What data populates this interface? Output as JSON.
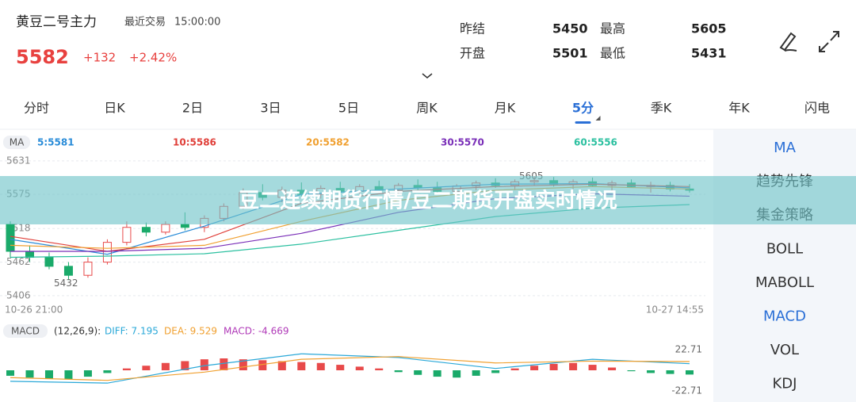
{
  "header": {
    "name": "黄豆二号主力",
    "last_trade_label": "最近交易",
    "time": "15:00:00",
    "price": 5582,
    "change": "+132",
    "change_pct": "+2.42%",
    "stats": [
      {
        "label": "昨结",
        "value": 5450
      },
      {
        "label": "最高",
        "value": 5605
      },
      {
        "label": "开盘",
        "value": 5501
      },
      {
        "label": "最低",
        "value": 5431
      }
    ]
  },
  "tabs": [
    "分时",
    "日K",
    "2日",
    "3日",
    "5日",
    "周K",
    "月K",
    "5分",
    "季K",
    "年K",
    "闪电"
  ],
  "active_tab": "5分",
  "side_menu": [
    "MA",
    "趋势先锋",
    "集金策略",
    "BOLL",
    "MABOLL",
    "MACD",
    "VOL",
    "KDJ"
  ],
  "side_active": [
    "MA",
    "MACD"
  ],
  "banner": "豆二连续期货行情/豆二期货开盘实时情况",
  "chart_data": [
    {
      "type": "candlestick",
      "legend_title": "MA",
      "up_color": "#e84a4a",
      "down_color": "#1aaa6a",
      "candles": [
        [
          5525,
          5530,
          5470,
          5480
        ],
        [
          5480,
          5490,
          5462,
          5470
        ],
        [
          5470,
          5478,
          5450,
          5455
        ],
        [
          5455,
          5462,
          5432,
          5440
        ],
        [
          5440,
          5470,
          5436,
          5462
        ],
        [
          5462,
          5500,
          5458,
          5495
        ],
        [
          5495,
          5530,
          5490,
          5520
        ],
        [
          5520,
          5528,
          5505,
          5512
        ],
        [
          5512,
          5530,
          5508,
          5525
        ],
        [
          5525,
          5545,
          5515,
          5520
        ],
        [
          5520,
          5540,
          5512,
          5535
        ],
        [
          5535,
          5560,
          5530,
          5555
        ],
        [
          5555,
          5585,
          5550,
          5578
        ],
        [
          5578,
          5592,
          5565,
          5570
        ],
        [
          5570,
          5588,
          5562,
          5582
        ],
        [
          5582,
          5595,
          5570,
          5575
        ],
        [
          5575,
          5590,
          5568,
          5585
        ],
        [
          5585,
          5596,
          5575,
          5580
        ],
        [
          5580,
          5592,
          5572,
          5588
        ],
        [
          5588,
          5598,
          5578,
          5582
        ],
        [
          5582,
          5594,
          5574,
          5590
        ],
        [
          5590,
          5600,
          5580,
          5586
        ],
        [
          5586,
          5596,
          5576,
          5580
        ],
        [
          5580,
          5592,
          5572,
          5589
        ],
        [
          5589,
          5598,
          5582,
          5594
        ],
        [
          5594,
          5602,
          5586,
          5590
        ],
        [
          5590,
          5600,
          5582,
          5596
        ],
        [
          5596,
          5605,
          5590,
          5598
        ],
        [
          5598,
          5604,
          5588,
          5592
        ],
        [
          5592,
          5600,
          5584,
          5596
        ],
        [
          5596,
          5603,
          5588,
          5590
        ],
        [
          5590,
          5598,
          5580,
          5594
        ],
        [
          5594,
          5600,
          5586,
          5588
        ],
        [
          5588,
          5596,
          5578,
          5590
        ],
        [
          5590,
          5596,
          5580,
          5584
        ],
        [
          5584,
          5592,
          5578,
          5582
        ]
      ],
      "ma_x": [
        0,
        5,
        10,
        15,
        20,
        25,
        30,
        35
      ],
      "series": [
        {
          "name": "5:5581",
          "color": "#2a8cd8",
          "values": [
            5500,
            5475,
            5522,
            5575,
            5584,
            5592,
            5593,
            5586
          ]
        },
        {
          "name": "10:5586",
          "color": "#e0403a",
          "values": [
            5505,
            5480,
            5500,
            5560,
            5580,
            5588,
            5592,
            5588
          ]
        },
        {
          "name": "20:5582",
          "color": "#f0a030",
          "values": [
            5490,
            5485,
            5490,
            5530,
            5565,
            5582,
            5588,
            5584
          ]
        },
        {
          "name": "30:5570",
          "color": "#7a2fb8",
          "values": [
            5480,
            5480,
            5485,
            5510,
            5545,
            5568,
            5576,
            5572
          ]
        },
        {
          "name": "60:5556",
          "color": "#2cc0a0",
          "values": [
            5470,
            5472,
            5476,
            5492,
            5515,
            5538,
            5552,
            5558
          ]
        }
      ],
      "max_label": 5605,
      "min_label": 5432,
      "ylim": [
        5390,
        5644
      ],
      "yticks": [
        5631,
        5575,
        5518,
        5462,
        5406
      ],
      "x_labels": [
        "10-26 21:00",
        "10-27 14:55"
      ]
    },
    {
      "type": "macd",
      "legend_title": "MACD",
      "params": "(12,26,9):",
      "up_color": "#e84a4a",
      "down_color": "#1aaa6a",
      "values": [
        -6,
        -8,
        -9,
        -10,
        -7,
        -3,
        2,
        5,
        8,
        10,
        12,
        13,
        12,
        11,
        10,
        9,
        8,
        6,
        4,
        2,
        -2,
        -5,
        -7,
        -8,
        -6,
        -3,
        2,
        5,
        7,
        8,
        6,
        3,
        -1,
        -3,
        -4,
        -4.669
      ],
      "line_x": [
        0,
        5,
        10,
        15,
        20,
        25,
        30,
        35
      ],
      "series": [
        {
          "name": "DIFF: 7.195",
          "color": "#2aa8d8",
          "values": [
            -12,
            -14,
            5,
            18,
            14,
            2,
            12,
            7.195
          ]
        },
        {
          "name": "DEA: 9.529",
          "color": "#f0a030",
          "values": [
            -8,
            -11,
            -2,
            12,
            15,
            8,
            10,
            9.529
          ]
        },
        {
          "name": "MACD: -4.669",
          "color": "#b03ab8"
        }
      ],
      "ylim": [
        -26,
        26
      ],
      "yticks": [
        22.71,
        -22.71
      ]
    }
  ]
}
